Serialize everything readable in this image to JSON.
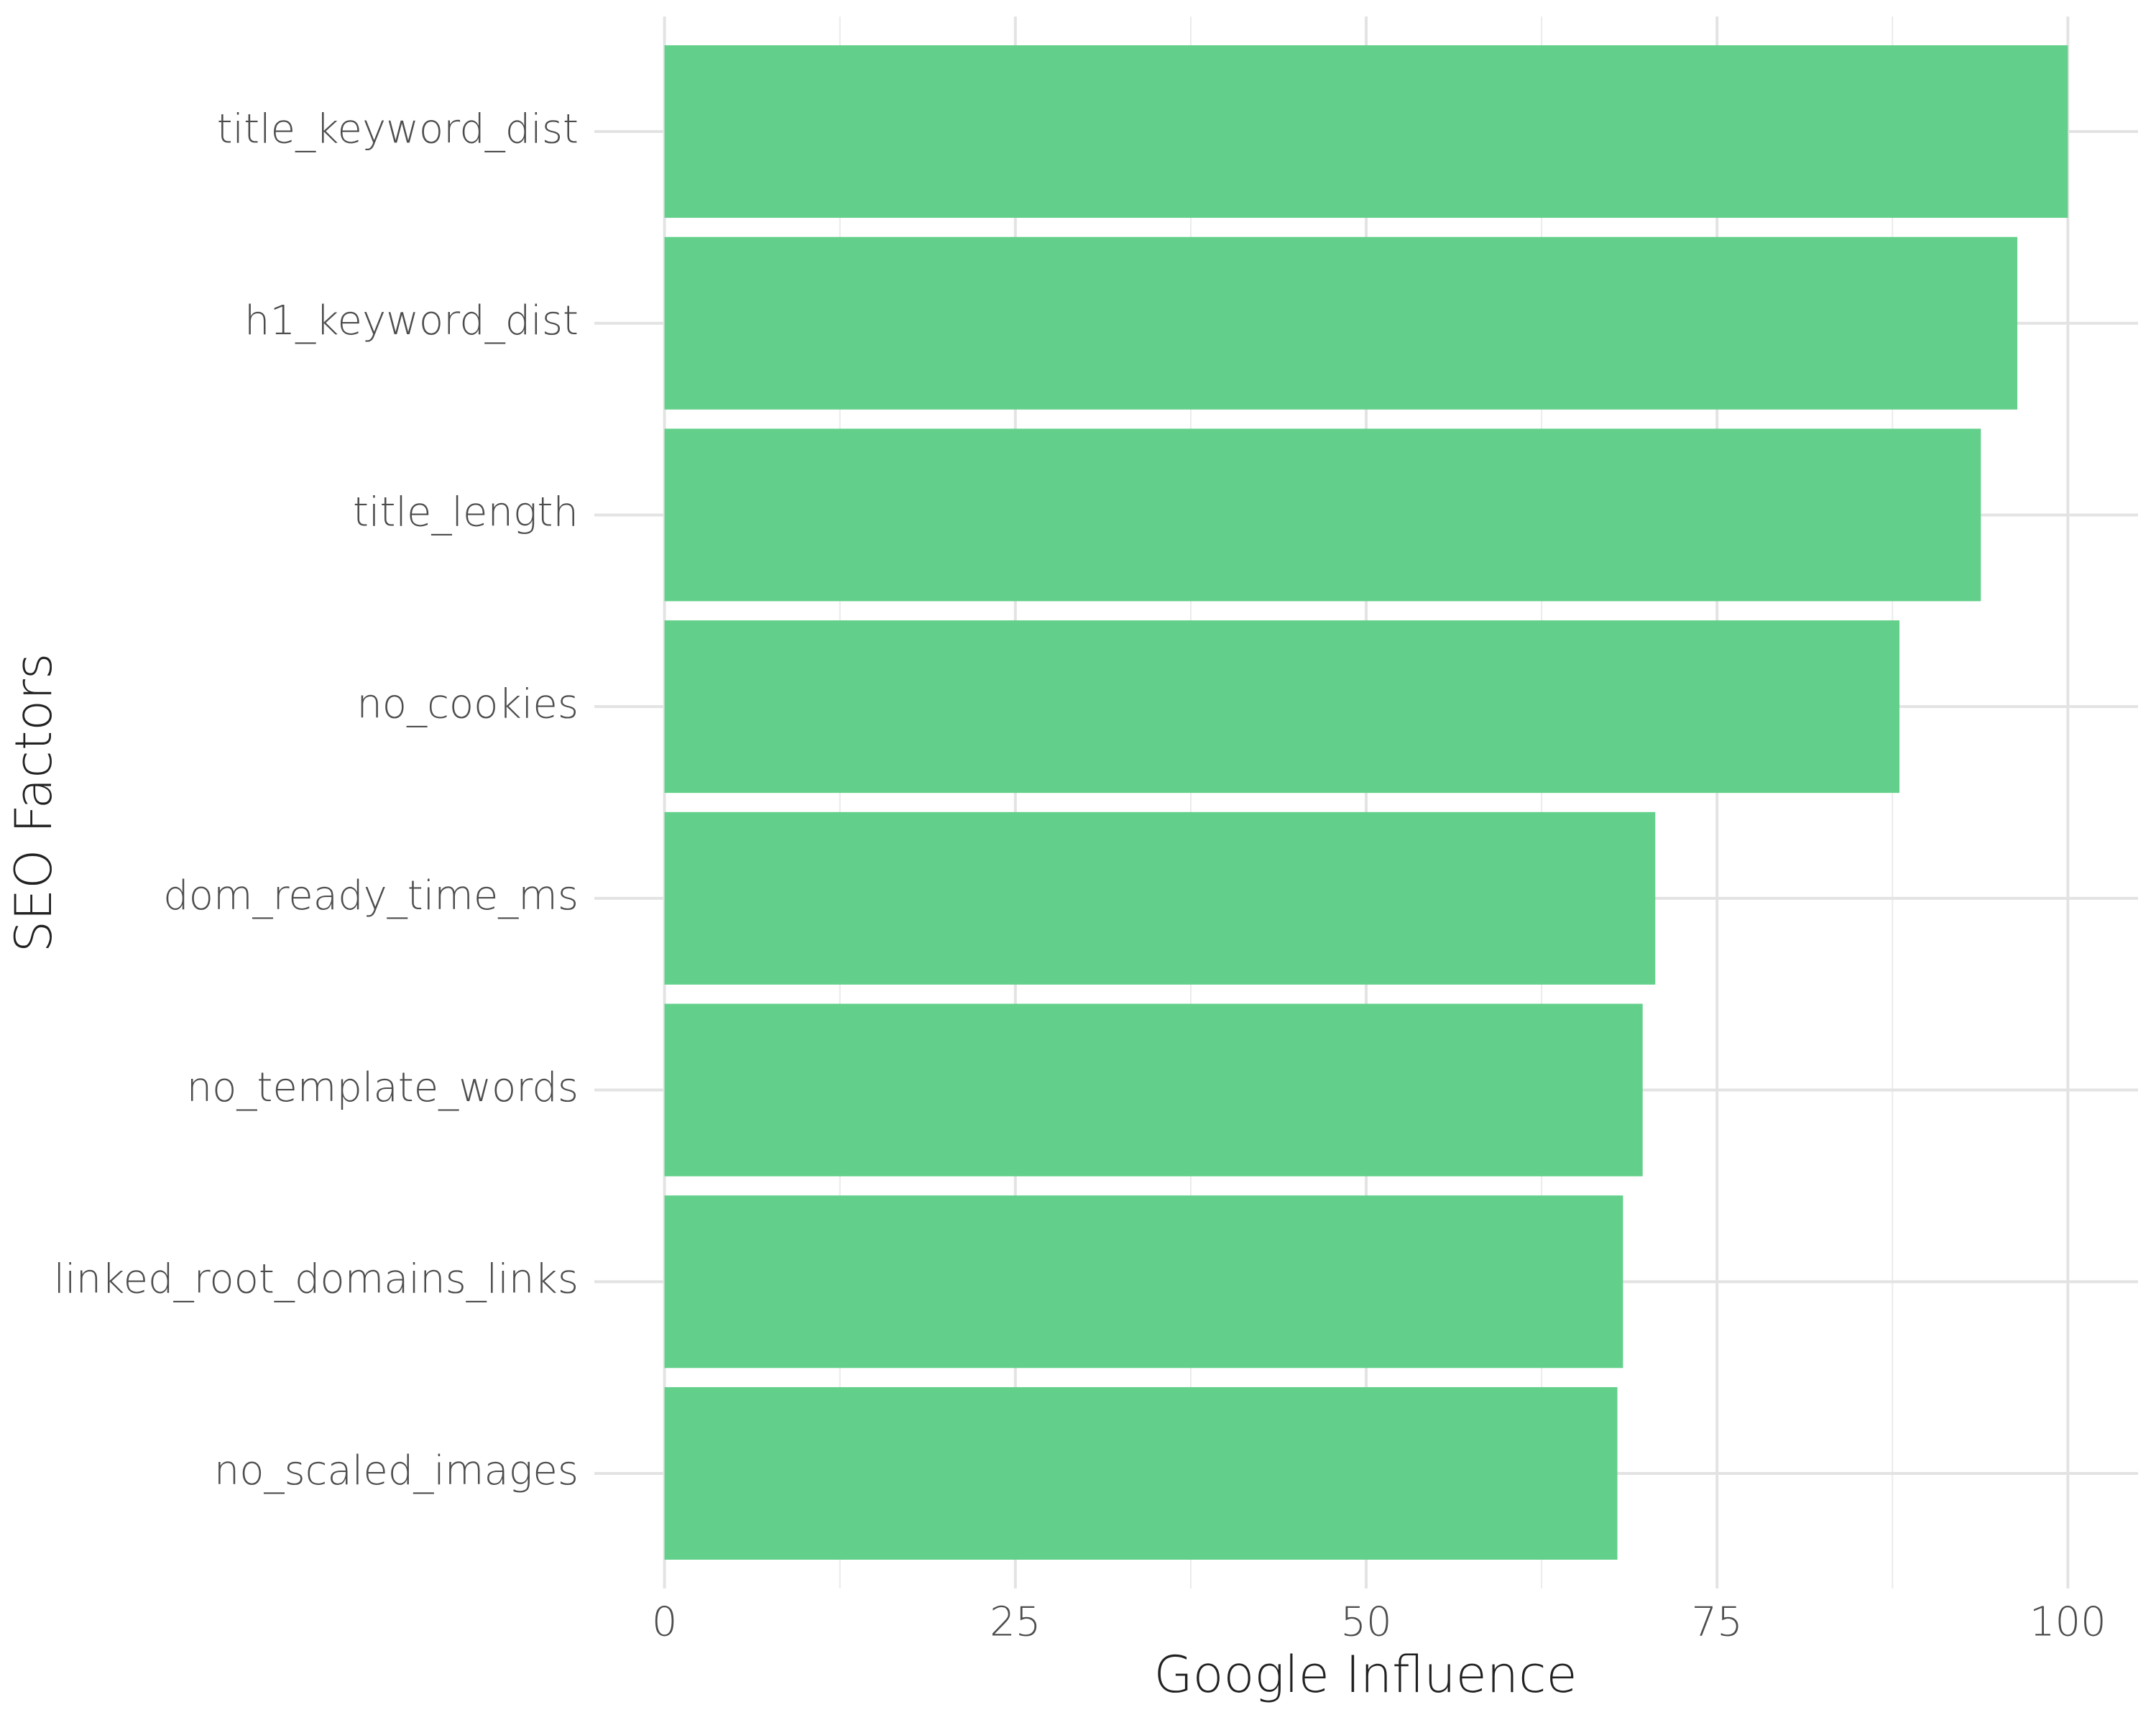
{
  "chart_data": {
    "type": "bar",
    "orientation": "horizontal",
    "categories": [
      "title_keyword_dist",
      "h1_keyword_dist",
      "title_length",
      "no_cookies",
      "dom_ready_time_ms",
      "no_template_words",
      "linked_root_domains_links",
      "no_scaled_images"
    ],
    "values": [
      100,
      96.4,
      93.8,
      88.0,
      70.6,
      69.7,
      68.3,
      67.9
    ],
    "color": "#62d08a",
    "xlabel": "Google Influence",
    "ylabel": "SEO Factors",
    "xlim": [
      -5,
      105
    ],
    "xticks": [
      0,
      25,
      50,
      75,
      100
    ],
    "grid": true
  }
}
